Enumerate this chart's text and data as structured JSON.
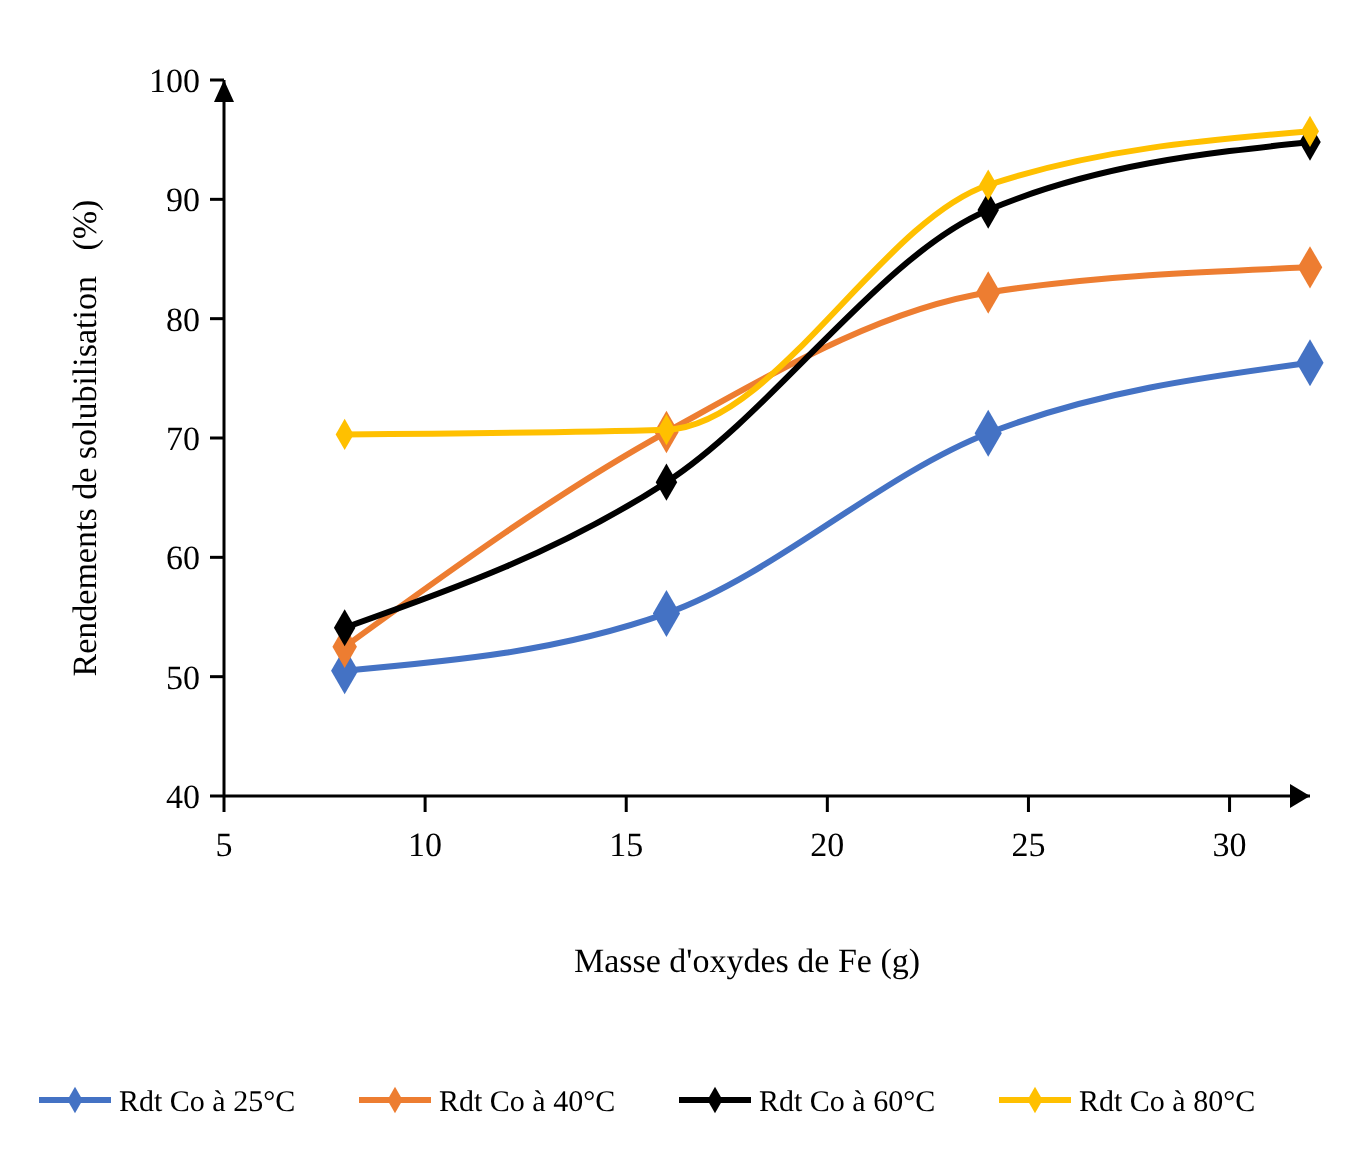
{
  "chart_data": {
    "type": "line",
    "xlabel": "Masse d'oxydes de Fe (g)",
    "ylabel": "Rendements de solubilisation   (%)",
    "x": [
      8,
      16,
      24,
      32
    ],
    "series": [
      {
        "name": "Rdt Co à 25°C",
        "color": "#4472c4",
        "values": [
          50.5,
          55.3,
          70.4,
          76.3
        ]
      },
      {
        "name": "Rdt Co à 40°C",
        "color": "#ed7d31",
        "values": [
          52.5,
          70.5,
          82.2,
          84.3
        ]
      },
      {
        "name": "Rdt Co à 60°C",
        "color": "#000000",
        "values": [
          54.1,
          66.3,
          89.1,
          94.8
        ]
      },
      {
        "name": "Rdt Co à 80°C",
        "color": "#ffc000",
        "values": [
          70.3,
          70.7,
          91.2,
          95.7
        ]
      }
    ],
    "xlim": [
      5,
      32
    ],
    "ylim": [
      40,
      100
    ],
    "xticks": [
      5,
      10,
      15,
      20,
      25,
      30
    ],
    "yticks": [
      40,
      50,
      60,
      70,
      80,
      90,
      100
    ],
    "grid": false,
    "legend": "bottom",
    "marker": "diamond",
    "line_style": "solid"
  }
}
